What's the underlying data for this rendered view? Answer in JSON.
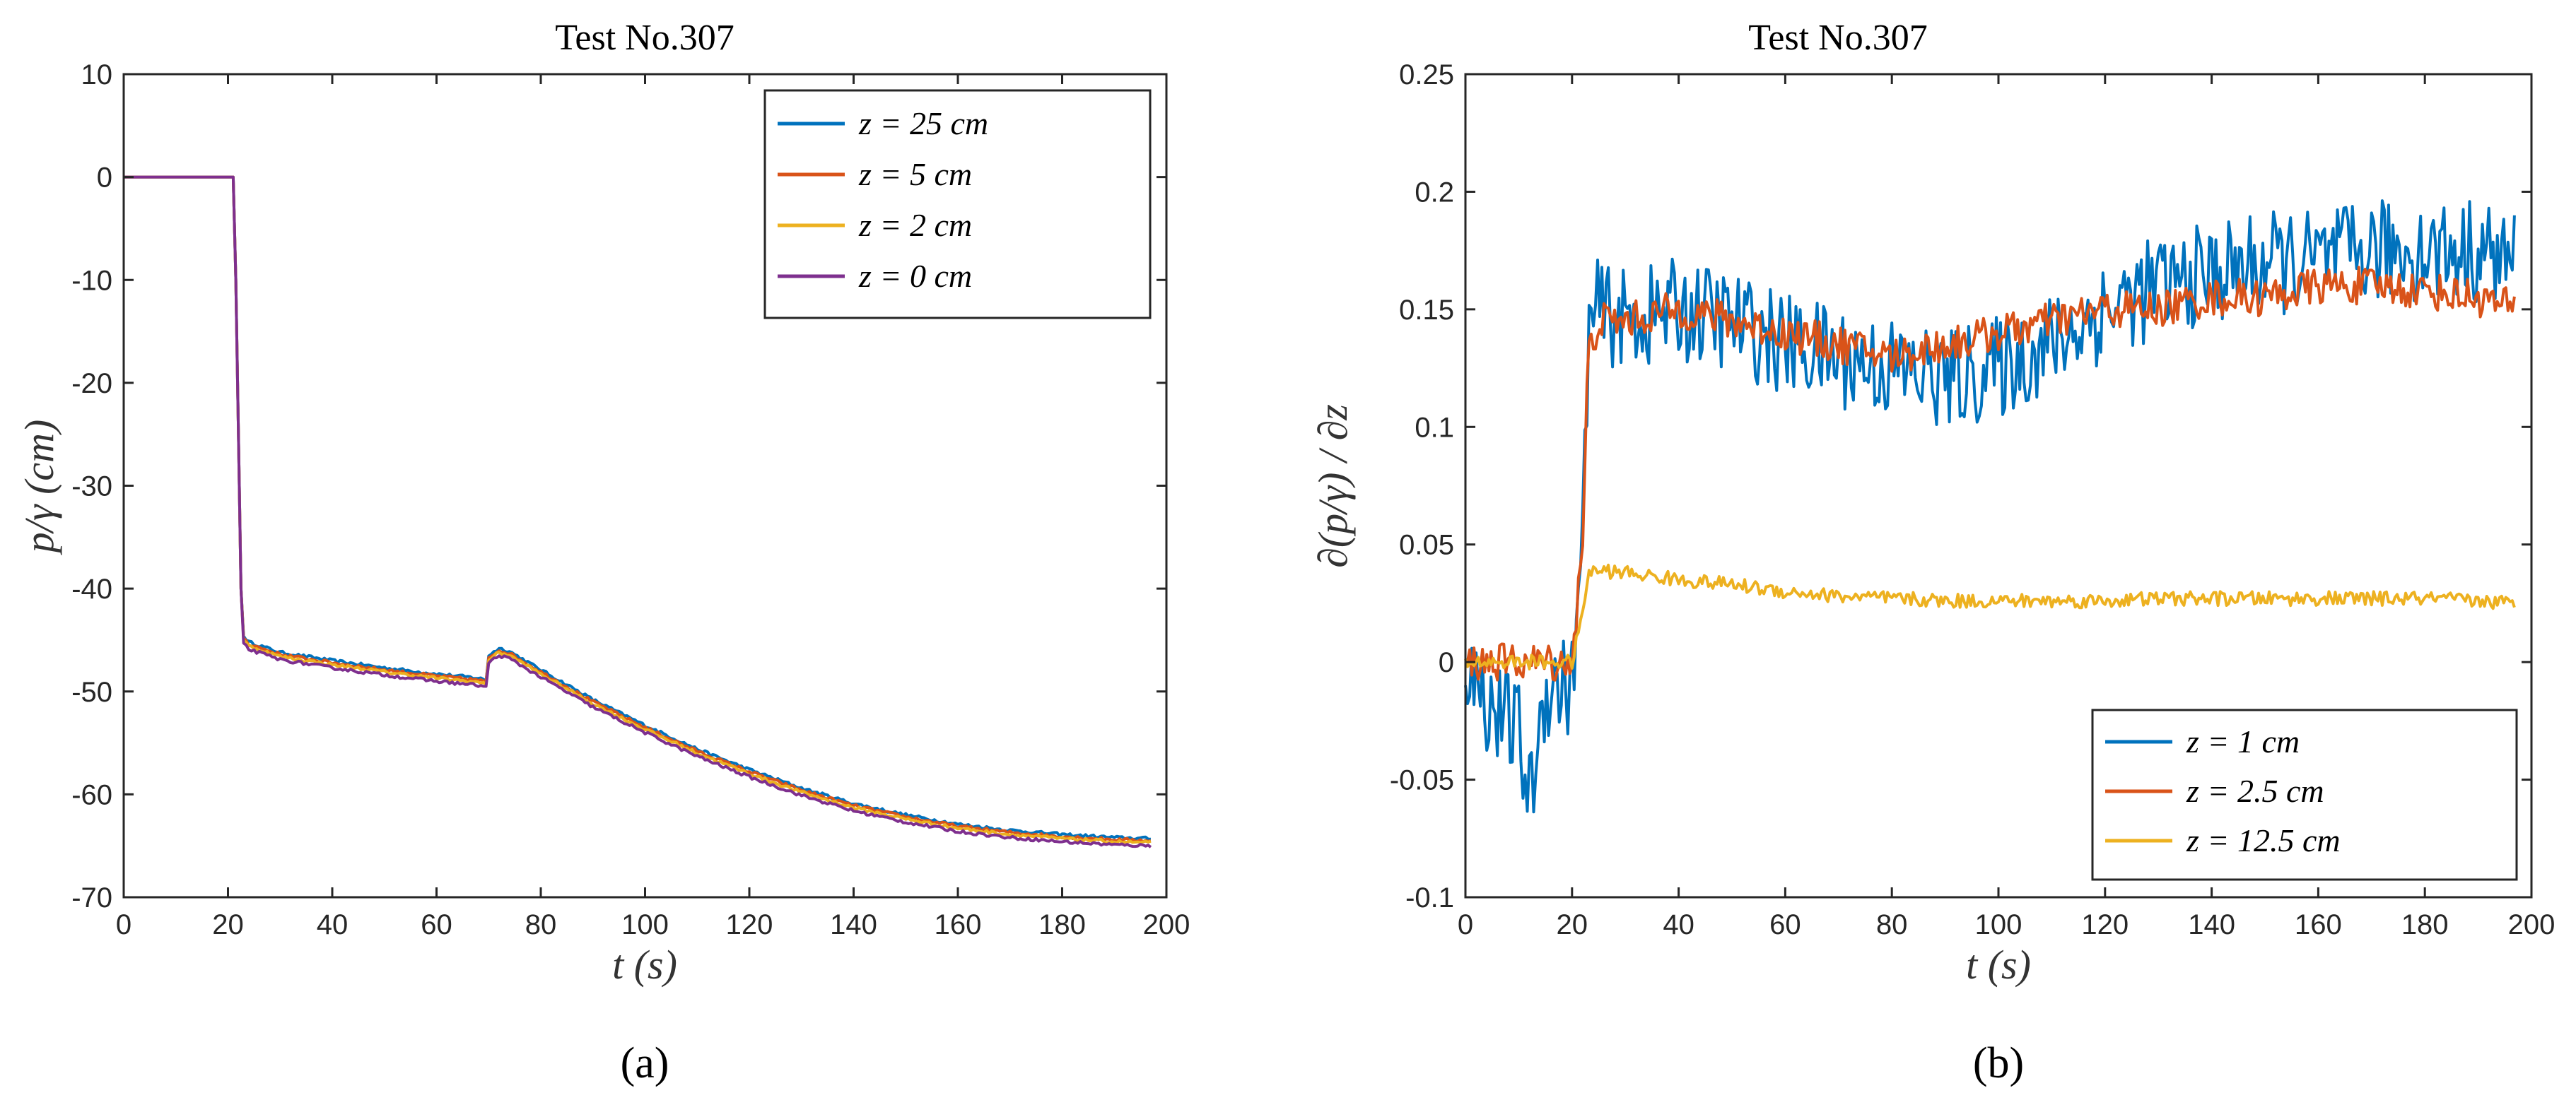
{
  "chart_data": [
    {
      "id": "a",
      "type": "line",
      "title": "Test No.307",
      "xlabel": "t (s)",
      "ylabel": "p/γ (cm)",
      "caption": "(a)",
      "xlim": [
        0,
        200
      ],
      "ylim": [
        -70,
        10
      ],
      "xticks": [
        0,
        20,
        40,
        60,
        80,
        100,
        120,
        140,
        160,
        180,
        200
      ],
      "yticks": [
        10,
        0,
        -10,
        -20,
        -30,
        -40,
        -50,
        -60,
        -70
      ],
      "legend_position": "top-right",
      "grid": false,
      "series": [
        {
          "name": "z = 25 cm",
          "color": "#0072BD",
          "offset": 0.4,
          "x": [
            0,
            21,
            21.5,
            22,
            22.5,
            23,
            24,
            30,
            40,
            50,
            60,
            68,
            69.5,
            70,
            72,
            74,
            80,
            90,
            100,
            110,
            120,
            130,
            140,
            150,
            160,
            170,
            180,
            190,
            197
          ],
          "y": [
            0,
            0,
            -10,
            -25,
            -40,
            -44.6,
            -45.2,
            -46.2,
            -47.0,
            -47.7,
            -48.3,
            -48.7,
            -48.9,
            -46.5,
            -45.8,
            -46.1,
            -47.9,
            -50.8,
            -53.3,
            -55.6,
            -57.6,
            -59.4,
            -60.9,
            -62.0,
            -62.9,
            -63.5,
            -63.9,
            -64.2,
            -64.3
          ]
        },
        {
          "name": "z = 5 cm",
          "color": "#D95319",
          "offset": 0.2,
          "x": [
            0,
            21,
            21.5,
            22,
            22.5,
            23,
            24,
            30,
            40,
            50,
            60,
            68,
            69.5,
            70,
            72,
            74,
            80,
            90,
            100,
            110,
            120,
            130,
            140,
            150,
            160,
            170,
            180,
            190,
            197
          ],
          "y": [
            0,
            0,
            -10,
            -25,
            -40,
            -44.8,
            -45.4,
            -46.4,
            -47.2,
            -47.9,
            -48.5,
            -48.9,
            -49.1,
            -46.7,
            -46.0,
            -46.3,
            -48.1,
            -51.0,
            -53.5,
            -55.8,
            -57.8,
            -59.6,
            -61.1,
            -62.2,
            -63.1,
            -63.7,
            -64.1,
            -64.4,
            -64.5
          ]
        },
        {
          "name": "z = 2 cm",
          "color": "#EDB120",
          "offset": 0.0,
          "x": [
            0,
            21,
            21.5,
            22,
            22.5,
            23,
            24,
            30,
            40,
            50,
            60,
            68,
            69.5,
            70,
            72,
            74,
            80,
            90,
            100,
            110,
            120,
            130,
            140,
            150,
            160,
            170,
            180,
            190,
            197
          ],
          "y": [
            0,
            0,
            -10,
            -25,
            -40,
            -45.0,
            -45.6,
            -46.6,
            -47.4,
            -48.1,
            -48.7,
            -49.1,
            -49.3,
            -46.9,
            -46.2,
            -46.5,
            -48.3,
            -51.2,
            -53.7,
            -56.0,
            -58.0,
            -59.8,
            -61.3,
            -62.4,
            -63.3,
            -63.9,
            -64.3,
            -64.6,
            -64.7
          ]
        },
        {
          "name": "z = 0 cm",
          "color": "#7E2F8E",
          "offset": -0.2,
          "x": [
            0,
            21,
            21.5,
            22,
            22.5,
            23,
            24,
            30,
            40,
            50,
            60,
            68,
            69.5,
            70,
            72,
            74,
            80,
            90,
            100,
            110,
            120,
            130,
            140,
            150,
            160,
            170,
            180,
            190,
            197
          ],
          "y": [
            0,
            0,
            -10,
            -25,
            -40,
            -45.3,
            -45.9,
            -46.9,
            -47.7,
            -48.4,
            -49.0,
            -49.4,
            -49.6,
            -47.2,
            -46.5,
            -46.8,
            -48.6,
            -51.5,
            -54.0,
            -56.3,
            -58.3,
            -60.1,
            -61.6,
            -62.7,
            -63.6,
            -64.2,
            -64.6,
            -64.9,
            -65.0
          ]
        }
      ]
    },
    {
      "id": "b",
      "type": "line",
      "title": "Test No.307",
      "xlabel": "t (s)",
      "ylabel": "∂(p/γ) / ∂z",
      "caption": "(b)",
      "xlim": [
        0,
        200
      ],
      "ylim": [
        -0.1,
        0.25
      ],
      "xticks": [
        0,
        20,
        40,
        60,
        80,
        100,
        120,
        140,
        160,
        180,
        200
      ],
      "yticks": [
        0.25,
        0.2,
        0.15,
        0.1,
        0.05,
        0,
        -0.05,
        -0.1
      ],
      "legend_position": "bottom-right",
      "grid": false,
      "series": [
        {
          "name": "z = 1 cm",
          "color": "#0072BD",
          "x": [
            0,
            5,
            10,
            12,
            15,
            20,
            22,
            23,
            25,
            30,
            40,
            50,
            60,
            70,
            80,
            90,
            100,
            110,
            120,
            130,
            140,
            150,
            160,
            170,
            180,
            190,
            197
          ],
          "y": [
            0.0,
            -0.02,
            -0.03,
            -0.06,
            -0.01,
            -0.01,
            0.05,
            0.14,
            0.15,
            0.145,
            0.15,
            0.145,
            0.135,
            0.13,
            0.125,
            0.12,
            0.125,
            0.135,
            0.15,
            0.16,
            0.165,
            0.17,
            0.17,
            0.175,
            0.175,
            0.175,
            0.17
          ],
          "noise": 0.022
        },
        {
          "name": "z = 2.5 cm",
          "color": "#D95319",
          "x": [
            0,
            10,
            20,
            22,
            23,
            25,
            30,
            40,
            50,
            60,
            70,
            80,
            90,
            100,
            110,
            120,
            130,
            140,
            150,
            160,
            170,
            180,
            190,
            197
          ],
          "y": [
            0.0,
            0.0,
            0.0,
            0.05,
            0.13,
            0.145,
            0.145,
            0.15,
            0.145,
            0.14,
            0.135,
            0.13,
            0.135,
            0.14,
            0.145,
            0.15,
            0.15,
            0.155,
            0.155,
            0.16,
            0.16,
            0.158,
            0.155,
            0.15
          ],
          "noise": 0.008
        },
        {
          "name": "z = 12.5 cm",
          "color": "#EDB120",
          "x": [
            0,
            10,
            20,
            22,
            23,
            25,
            30,
            40,
            50,
            60,
            70,
            80,
            90,
            100,
            110,
            120,
            130,
            140,
            150,
            160,
            170,
            180,
            190,
            197
          ],
          "y": [
            0.0,
            0.0,
            0.0,
            0.02,
            0.038,
            0.039,
            0.038,
            0.035,
            0.033,
            0.03,
            0.028,
            0.027,
            0.026,
            0.026,
            0.026,
            0.026,
            0.027,
            0.027,
            0.027,
            0.027,
            0.027,
            0.027,
            0.026,
            0.025
          ],
          "noise": 0.003
        }
      ]
    }
  ]
}
